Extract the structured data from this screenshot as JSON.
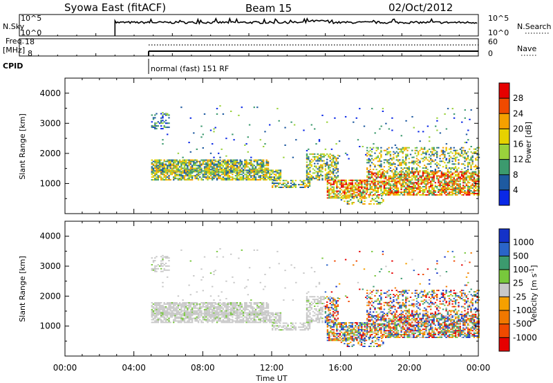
{
  "header": {
    "title": "Syowa East (fitACF)",
    "beam": "Beam 15",
    "date": "02/Oct/2012"
  },
  "top_panels": {
    "nsky": {
      "label": "N.Sky",
      "axis_top": "10^5",
      "axis_bottom": "10^0"
    },
    "nsearch": {
      "label": "N.Search",
      "axis_top": "10^5",
      "axis_bottom": "10^0"
    },
    "freq": {
      "label_line1": "Freq.",
      "label_line2": "[MHz]",
      "axis_top": "18",
      "axis_bottom": "8"
    },
    "nave": {
      "label": "Nave",
      "axis_top": "60",
      "axis_bottom": "0"
    },
    "cpid": {
      "label": "CPID",
      "text": "normal (fast) 151 RF"
    }
  },
  "chart_data": [
    {
      "type": "heatmap",
      "name": "power",
      "ylabel": "Slant Range [km]",
      "yticks": [
        1000,
        2000,
        3000,
        4000
      ],
      "ylim": [
        0,
        4500
      ],
      "xticks": [
        "00:00",
        "04:00",
        "08:00",
        "12:00",
        "16:00",
        "20:00",
        "00:00"
      ],
      "xlim_hours": [
        0,
        24
      ],
      "colorbar": {
        "label": "Power [dB]",
        "ticks": [
          "28",
          "24",
          "20",
          "16",
          "12",
          "8",
          "4"
        ],
        "colors": [
          "#e60000",
          "#f04a00",
          "#f5a000",
          "#e6d200",
          "#9ad23c",
          "#3c9a6e",
          "#1e5aa0",
          "#0a28e6"
        ]
      }
    },
    {
      "type": "heatmap",
      "name": "velocity",
      "ylabel": "Slant Range [km]",
      "xlabel": "Time UT",
      "yticks": [
        1000,
        2000,
        3000,
        4000
      ],
      "ylim": [
        0,
        4500
      ],
      "xticks": [
        "00:00",
        "04:00",
        "08:00",
        "12:00",
        "16:00",
        "20:00",
        "00:00"
      ],
      "xlim_hours": [
        0,
        24
      ],
      "colorbar": {
        "label": "Velocity [m s^-1]",
        "ticks": [
          "1000",
          "500",
          "100",
          "25",
          "-25",
          "-100",
          "-500",
          "-1000"
        ],
        "colors": [
          "#1432c8",
          "#2a64c8",
          "#3c9a6e",
          "#78c83c",
          "#c8c8c8",
          "#f5a000",
          "#f07800",
          "#f04a00",
          "#e60000"
        ]
      }
    }
  ]
}
